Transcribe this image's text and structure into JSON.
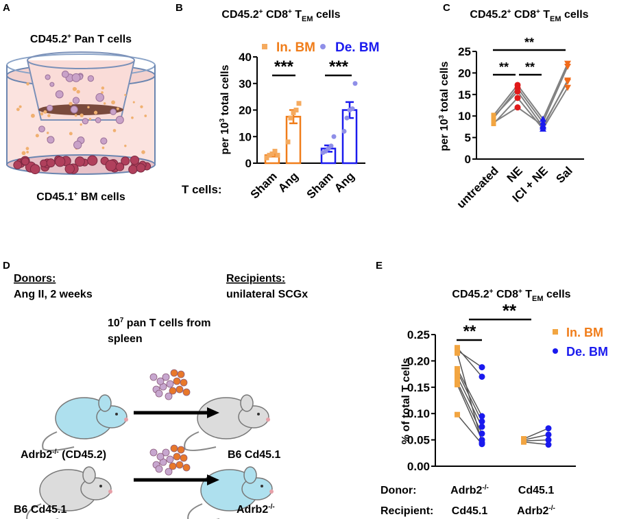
{
  "colors": {
    "orange": "#f07d1a",
    "orange_light": "#f5aa5e",
    "blue": "#1a1aee",
    "blue_light": "#8f8fe8",
    "red": "#e01919",
    "grey": "#808080"
  },
  "panel_a": {
    "label": "A",
    "top_text": "CD45.2",
    "top_sup": "+",
    "top_rest": " Pan T cells",
    "bottom_text": "CD45.1",
    "bottom_sup": "+",
    "bottom_rest": " BM cells"
  },
  "panel_d": {
    "label": "D",
    "donors_heading": "Donors:",
    "donors_sub": "Ang II, 2 weeks",
    "recipients_heading": "Recipients:",
    "recipients_sub": "unilateral SCGx",
    "transfer_l1a": "10",
    "transfer_sup": "7",
    "transfer_l1b": " pan T cells from",
    "transfer_l2": "spleen",
    "donor1": "Adrb2",
    "donor1_sup": "-/-",
    "donor1_rest": " (CD45.2)",
    "recipient1": "B6 Cd45.1",
    "donor2": "B6 Cd45.1",
    "recipient2": "Adrb2",
    "recipient2_sup": "-/-"
  },
  "chart_data": [
    {
      "panel": "B",
      "type": "bar",
      "title_a": "CD45.2",
      "title_sup1": "+",
      "title_b": " CD8",
      "title_sup2": "+",
      "title_c": " T",
      "title_sub": "EM",
      "title_d": " cells",
      "ylabel_a": "per 10",
      "ylabel_sup": "3",
      "ylabel_b": " total cells",
      "ylim": [
        0,
        40
      ],
      "yticks": [
        "0",
        "10",
        "20",
        "30",
        "40"
      ],
      "row_label": "T cells:",
      "categories": [
        "Sham",
        "Ang",
        "Sham",
        "Ang"
      ],
      "legend": [
        "In. BM",
        "De. BM"
      ],
      "legend_placement": "top",
      "series": [
        {
          "name": "In. BM",
          "means": [
            3,
            17.5
          ],
          "sem": [
            0.5,
            2.5
          ],
          "points": [
            [
              2,
              3,
              3.5,
              4.5,
              3
            ],
            [
              8,
              17,
              19,
              20,
              22.5
            ]
          ]
        },
        {
          "name": "De. BM",
          "means": [
            5.5,
            20
          ],
          "sem": [
            1.2,
            3
          ],
          "points": [
            [
              4,
              4.5,
              5.5,
              6.5,
              10
            ],
            [
              12,
              17,
              20,
              20.5,
              30
            ]
          ]
        }
      ],
      "significance": [
        "***",
        "***"
      ]
    },
    {
      "panel": "C",
      "type": "line",
      "title_a": "CD45.2",
      "title_sup1": "+",
      "title_b": " CD8",
      "title_sup2": "+",
      "title_c": " T",
      "title_sub": "EM",
      "title_d": " cells",
      "ylabel_a": "per 10",
      "ylabel_sup": "3",
      "ylabel_b": " total cells",
      "ylim": [
        0,
        25
      ],
      "yticks": [
        "0",
        "5",
        "10",
        "15",
        "20",
        "25"
      ],
      "categories": [
        "untreated",
        "NE",
        "ICI + NE",
        "Sal"
      ],
      "paired_values": [
        [
          10.2,
          17.2,
          9.3,
          22.2
        ],
        [
          9.5,
          16.5,
          8.5,
          21.5
        ],
        [
          9.8,
          15.7,
          7.5,
          18.3
        ],
        [
          8.2,
          14.2,
          7.0,
          16.6
        ],
        [
          8.5,
          12.0,
          7.8,
          18.0
        ]
      ],
      "significance": [
        "**",
        "**",
        "**"
      ]
    },
    {
      "panel": "E",
      "type": "scatter",
      "title_a": "CD45.2",
      "title_sup1": "+",
      "title_b": " CD8",
      "title_sup2": "+",
      "title_c": " T",
      "title_sub": "EM",
      "title_d": " cells",
      "ylabel": "% of total T cells",
      "ylim": [
        0,
        0.25
      ],
      "yticks": [
        "0.00",
        "0.05",
        "0.10",
        "0.15",
        "0.20",
        "0.25"
      ],
      "legend": [
        "In. BM",
        "De. BM"
      ],
      "legend_placement": "right",
      "row1_label": "Donor:",
      "row2_label": "Recipient:",
      "groups": [
        {
          "donor": "Adrb2",
          "donor_sup": "-/-",
          "recipient": "Cd45.1",
          "recipient_sup": "",
          "in_bm": [
            0.225,
            0.215,
            0.22,
            0.185,
            0.18,
            0.17,
            0.16,
            0.155,
            0.098
          ],
          "de_bm": [
            0.17,
            0.045,
            0.188,
            0.095,
            0.085,
            0.075,
            0.062,
            0.05,
            0.042
          ]
        },
        {
          "donor": "Cd45.1",
          "donor_sup": "",
          "recipient": "Adrb2",
          "recipient_sup": "-/-",
          "in_bm": [
            0.052,
            0.05,
            0.048,
            0.046
          ],
          "de_bm": [
            0.072,
            0.06,
            0.05,
            0.041
          ]
        }
      ],
      "significance": [
        "**",
        "**"
      ]
    }
  ]
}
